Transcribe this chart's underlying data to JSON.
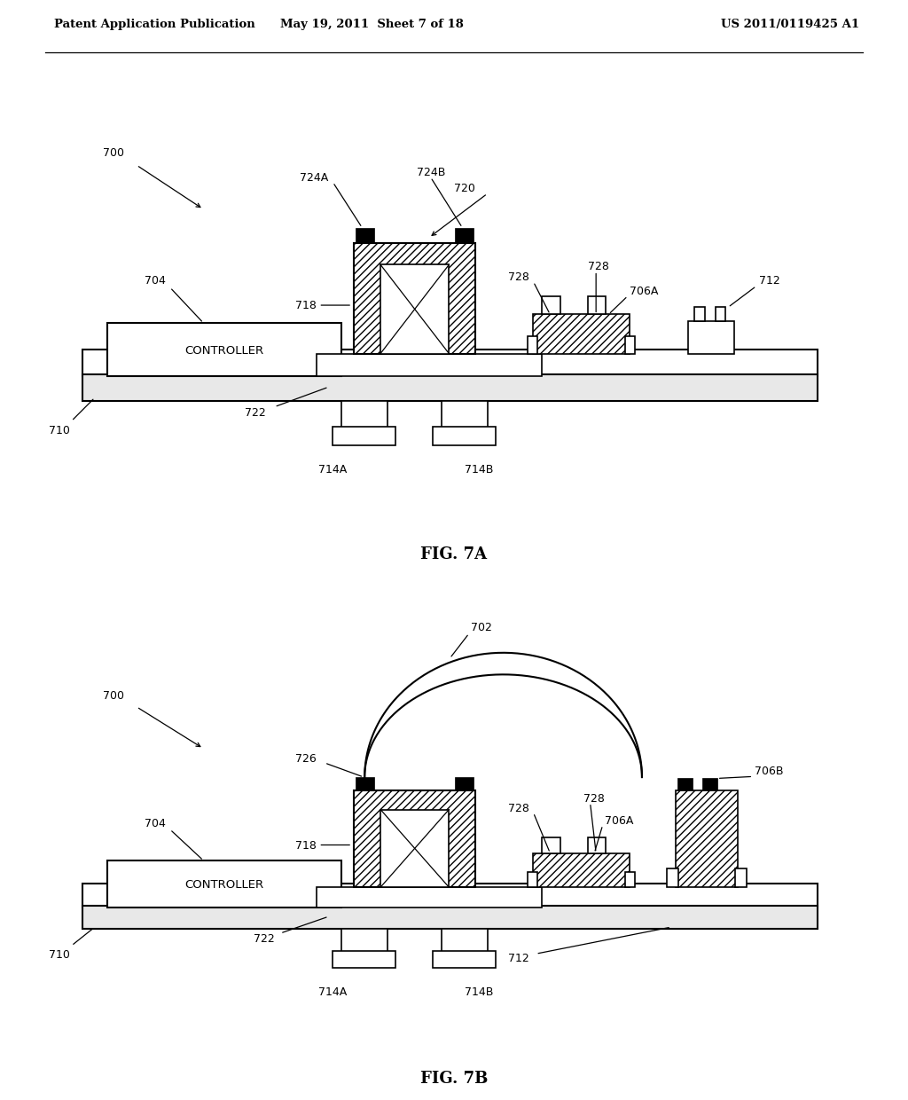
{
  "bg_color": "#ffffff",
  "header_left": "Patent Application Publication",
  "header_mid": "May 19, 2011  Sheet 7 of 18",
  "header_right": "US 2011/0119425 A1",
  "fig7a_label": "FIG. 7A",
  "fig7b_label": "FIG. 7B",
  "lw": 1.2,
  "font_size_header": 9.5,
  "font_size_label": 9.0,
  "font_size_fig": 13
}
